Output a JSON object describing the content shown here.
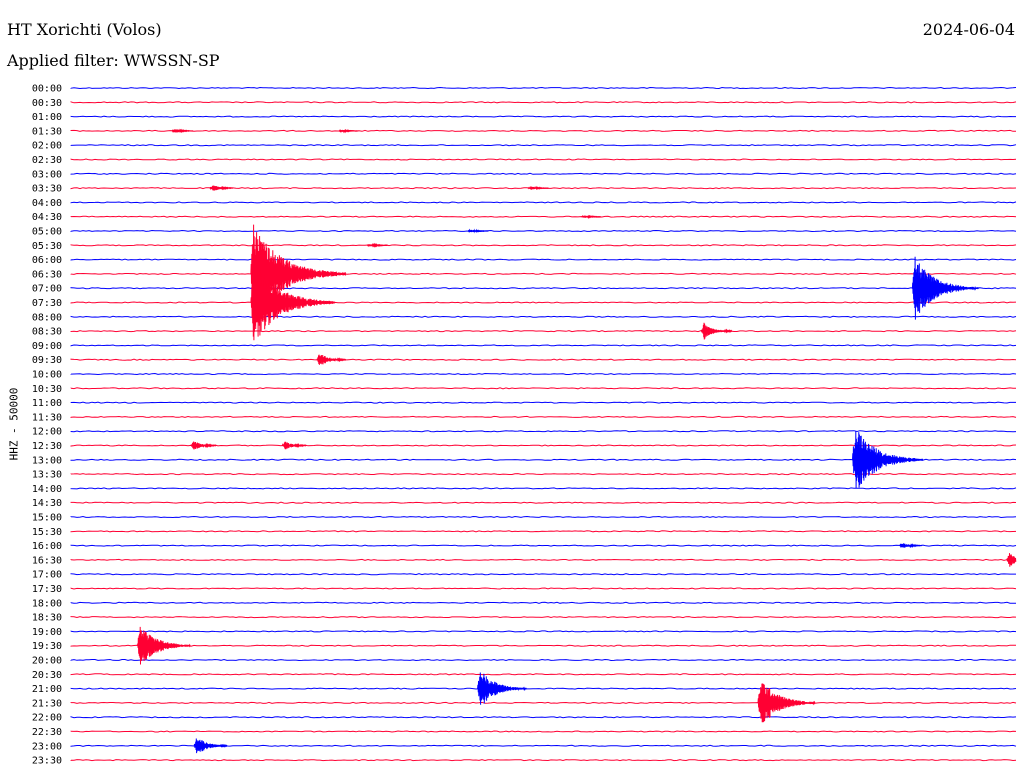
{
  "header": {
    "title": "HT Xorichti (Volos)",
    "date": "2024-06-04",
    "filter": "Applied filter: WWSSN-SP"
  },
  "colors": {
    "odd_trace": "#0000ff",
    "even_trace": "#ff0033"
  },
  "chart_data": {
    "type": "line",
    "title": "HT Xorichti (Volos)",
    "subtitle": "Applied filter: WWSSN-SP",
    "ylabel": "HHZ - 50000",
    "xlabel": "",
    "grid": false,
    "legend": "none",
    "rows": [
      "00:00",
      "00:30",
      "01:00",
      "01:30",
      "02:00",
      "02:30",
      "03:00",
      "03:30",
      "04:00",
      "04:30",
      "05:00",
      "05:30",
      "06:00",
      "06:30",
      "07:00",
      "07:30",
      "08:00",
      "08:30",
      "09:00",
      "09:30",
      "10:00",
      "10:30",
      "11:00",
      "11:30",
      "12:00",
      "12:30",
      "13:00",
      "13:30",
      "14:00",
      "14:30",
      "15:00",
      "15:30",
      "16:00",
      "16:30",
      "17:00",
      "17:30",
      "18:00",
      "18:30",
      "19:00",
      "19:30",
      "20:00",
      "20:30",
      "21:00",
      "21:30",
      "22:00",
      "22:30",
      "23:00",
      "23:30"
    ],
    "x_range_minutes": [
      0,
      30
    ],
    "events": [
      {
        "row": "01:30",
        "minute": 3.2,
        "amplitude": 0.15
      },
      {
        "row": "01:30",
        "minute": 8.5,
        "amplitude": 0.08
      },
      {
        "row": "03:30",
        "minute": 4.4,
        "amplitude": 0.25
      },
      {
        "row": "03:30",
        "minute": 14.5,
        "amplitude": 0.12
      },
      {
        "row": "04:30",
        "minute": 16.2,
        "amplitude": 0.1
      },
      {
        "row": "05:00",
        "minute": 12.6,
        "amplitude": 0.12
      },
      {
        "row": "05:30",
        "minute": 9.4,
        "amplitude": 0.12
      },
      {
        "row": "06:30",
        "minute": 5.7,
        "amplitude": 3.5
      },
      {
        "row": "07:00",
        "minute": 26.7,
        "amplitude": 2.2
      },
      {
        "row": "07:30",
        "minute": 5.7,
        "amplitude": 3.0
      },
      {
        "row": "08:30",
        "minute": 20.0,
        "amplitude": 0.6
      },
      {
        "row": "09:30",
        "minute": 7.8,
        "amplitude": 0.5
      },
      {
        "row": "12:30",
        "minute": 3.8,
        "amplitude": 0.35
      },
      {
        "row": "12:30",
        "minute": 6.7,
        "amplitude": 0.3
      },
      {
        "row": "13:00",
        "minute": 24.8,
        "amplitude": 2.4
      },
      {
        "row": "16:00",
        "minute": 26.3,
        "amplitude": 0.2
      },
      {
        "row": "16:30",
        "minute": 29.7,
        "amplitude": 0.5
      },
      {
        "row": "19:30",
        "minute": 2.1,
        "amplitude": 1.6
      },
      {
        "row": "21:00",
        "minute": 12.9,
        "amplitude": 1.4
      },
      {
        "row": "21:30",
        "minute": 21.8,
        "amplitude": 1.8
      },
      {
        "row": "23:00",
        "minute": 3.9,
        "amplitude": 0.7
      }
    ]
  }
}
